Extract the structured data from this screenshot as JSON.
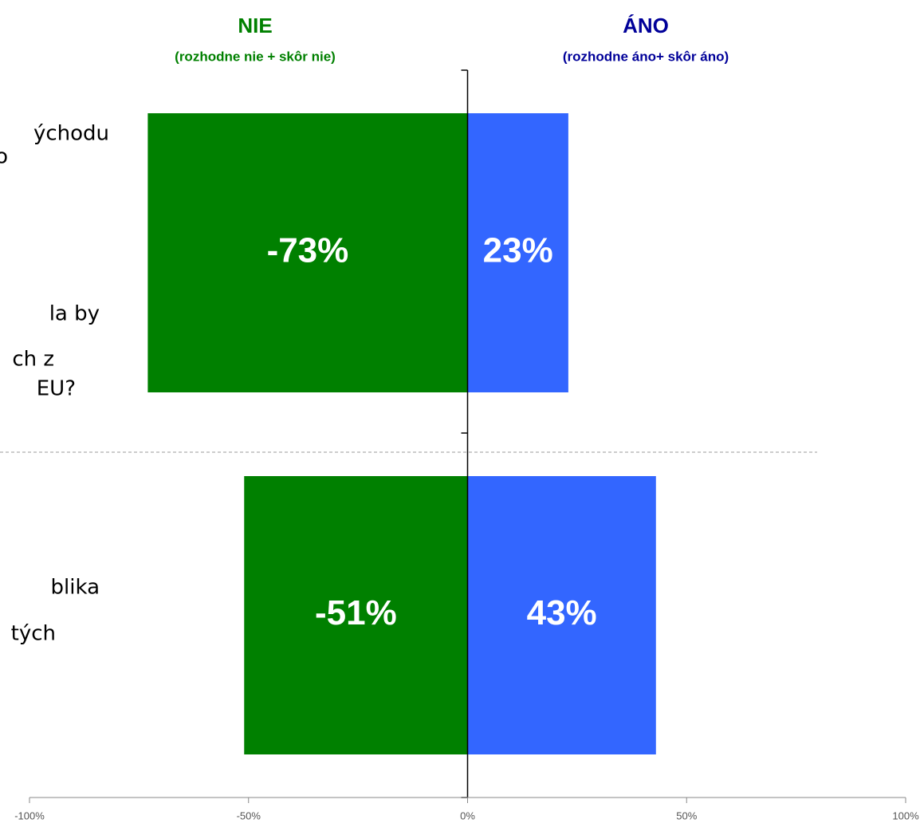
{
  "chart_data": {
    "type": "diverging-bar",
    "categories": [
      [
        "ýchodu",
        "o",
        "la by",
        "ch z",
        "EU?"
      ],
      [
        "blika",
        "tých"
      ]
    ],
    "series": [
      {
        "name": "NIE",
        "note": "(rozhodne nie + skôr nie)",
        "color": "#008000",
        "header_color": "#008000",
        "values": [
          -73,
          -51
        ],
        "value_labels": [
          "-73%",
          "-51%"
        ]
      },
      {
        "name": "ÁNO",
        "note": "(rozhodne áno+ skôr áno)",
        "color": "#3366ff",
        "header_color": "#000099",
        "values": [
          23,
          43
        ],
        "value_labels": [
          "23%",
          "43%"
        ]
      }
    ],
    "xlim": [
      -100,
      100
    ],
    "xticks": [
      {
        "value": -100,
        "label": "-100%"
      },
      {
        "value": -50,
        "label": "-50%"
      },
      {
        "value": 0,
        "label": "0%"
      },
      {
        "value": 50,
        "label": "50%"
      },
      {
        "value": 100,
        "label": "100%"
      }
    ]
  }
}
